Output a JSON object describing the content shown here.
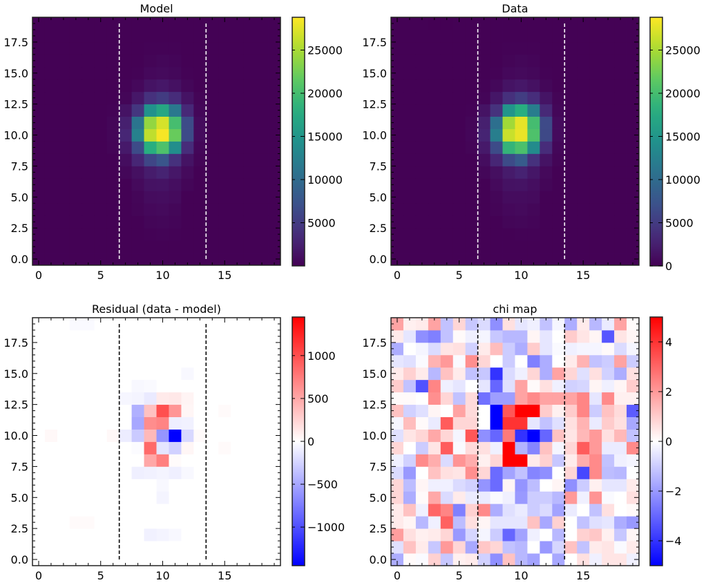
{
  "chart_data": [
    {
      "type": "heatmap",
      "title": "Model",
      "xlabel": "",
      "ylabel": "",
      "xlim": [
        -0.5,
        19.5
      ],
      "ylim": [
        -0.5,
        19.5
      ],
      "xticks": [
        "0",
        "5",
        "10",
        "15"
      ],
      "yticks": [
        "0.0",
        "2.5",
        "5.0",
        "7.5",
        "10.0",
        "12.5",
        "15.0",
        "17.5"
      ],
      "cmap": "viridis",
      "colorbar": {
        "range": [
          0,
          28800
        ],
        "ticks": [
          "5000",
          "10000",
          "15000",
          "20000",
          "25000"
        ]
      },
      "vlines": [
        6.5,
        13.5
      ],
      "vline_color": "#ffffff",
      "background_value": 50,
      "cells": [
        [
          9,
          17,
          150
        ],
        [
          10,
          17,
          200
        ],
        [
          11,
          17,
          150
        ],
        [
          9,
          16,
          300
        ],
        [
          10,
          16,
          450
        ],
        [
          11,
          16,
          350
        ],
        [
          8,
          15,
          200
        ],
        [
          9,
          15,
          600
        ],
        [
          10,
          15,
          700
        ],
        [
          11,
          15,
          550
        ],
        [
          12,
          15,
          200
        ],
        [
          7,
          14,
          150
        ],
        [
          8,
          14,
          600
        ],
        [
          9,
          14,
          1500
        ],
        [
          10,
          14,
          1800
        ],
        [
          11,
          14,
          1300
        ],
        [
          12,
          14,
          500
        ],
        [
          7,
          13,
          400
        ],
        [
          8,
          13,
          1800
        ],
        [
          9,
          13,
          4000
        ],
        [
          10,
          13,
          5000
        ],
        [
          11,
          13,
          3500
        ],
        [
          12,
          13,
          1500
        ],
        [
          13,
          13,
          300
        ],
        [
          6,
          12,
          200
        ],
        [
          7,
          12,
          1500
        ],
        [
          8,
          12,
          4500
        ],
        [
          9,
          12,
          14500
        ],
        [
          10,
          12,
          17000
        ],
        [
          11,
          12,
          11500
        ],
        [
          12,
          12,
          3200
        ],
        [
          13,
          12,
          500
        ],
        [
          6,
          11,
          400
        ],
        [
          7,
          11,
          2500
        ],
        [
          8,
          11,
          11000
        ],
        [
          9,
          11,
          24000
        ],
        [
          10,
          11,
          27000
        ],
        [
          11,
          11,
          20000
        ],
        [
          12,
          11,
          6500
        ],
        [
          13,
          11,
          800
        ],
        [
          6,
          10,
          400
        ],
        [
          7,
          10,
          3000
        ],
        [
          8,
          10,
          12500
        ],
        [
          9,
          10,
          26000
        ],
        [
          10,
          10,
          28500
        ],
        [
          11,
          10,
          22000
        ],
        [
          12,
          10,
          6500
        ],
        [
          13,
          10,
          800
        ],
        [
          6,
          9,
          300
        ],
        [
          7,
          9,
          2000
        ],
        [
          8,
          9,
          6500
        ],
        [
          9,
          9,
          18000
        ],
        [
          10,
          9,
          20500
        ],
        [
          11,
          9,
          14000
        ],
        [
          12,
          9,
          3500
        ],
        [
          13,
          9,
          500
        ],
        [
          7,
          8,
          1000
        ],
        [
          8,
          8,
          3000
        ],
        [
          9,
          8,
          6000
        ],
        [
          10,
          8,
          7500
        ],
        [
          11,
          8,
          4000
        ],
        [
          12,
          8,
          1500
        ],
        [
          13,
          8,
          300
        ],
        [
          7,
          7,
          500
        ],
        [
          8,
          7,
          1200
        ],
        [
          9,
          7,
          2200
        ],
        [
          10,
          7,
          2800
        ],
        [
          11,
          7,
          1800
        ],
        [
          12,
          7,
          700
        ],
        [
          8,
          6,
          700
        ],
        [
          9,
          6,
          1400
        ],
        [
          10,
          6,
          1500
        ],
        [
          11,
          6,
          1100
        ],
        [
          12,
          6,
          400
        ],
        [
          8,
          5,
          400
        ],
        [
          9,
          5,
          900
        ],
        [
          10,
          5,
          1000
        ],
        [
          11,
          5,
          800
        ],
        [
          8,
          4,
          300
        ],
        [
          9,
          4,
          600
        ],
        [
          10,
          4,
          700
        ],
        [
          11,
          4,
          500
        ],
        [
          9,
          3,
          400
        ],
        [
          10,
          3,
          450
        ],
        [
          11,
          3,
          350
        ],
        [
          9,
          2,
          200
        ],
        [
          10,
          2,
          250
        ],
        [
          11,
          2,
          200
        ]
      ]
    },
    {
      "type": "heatmap",
      "title": "Data",
      "xlabel": "",
      "ylabel": "",
      "xlim": [
        -0.5,
        19.5
      ],
      "ylim": [
        -0.5,
        19.5
      ],
      "xticks": [
        "0",
        "5",
        "10",
        "15"
      ],
      "yticks": [
        "0.0",
        "2.5",
        "5.0",
        "7.5",
        "10.0",
        "12.5",
        "15.0",
        "17.5"
      ],
      "cmap": "viridis",
      "colorbar": {
        "range": [
          0,
          28800
        ],
        "ticks": [
          "0",
          "5000",
          "10000",
          "15000",
          "20000",
          "25000"
        ]
      },
      "vlines": [
        6.5,
        13.5
      ],
      "vline_color": "#ffffff",
      "derived_from": "model + residual"
    },
    {
      "type": "heatmap",
      "title": "Residual (data - model)",
      "xlabel": "",
      "ylabel": "",
      "xlim": [
        -0.5,
        19.5
      ],
      "ylim": [
        -0.5,
        19.5
      ],
      "xticks": [
        "0",
        "5",
        "10",
        "15"
      ],
      "yticks": [
        "0.0",
        "2.5",
        "5.0",
        "7.5",
        "10.0",
        "12.5",
        "15.0",
        "17.5"
      ],
      "cmap": "bwr",
      "colorbar": {
        "range": [
          -1450,
          1450
        ],
        "ticks": [
          "−1000",
          "−500",
          "0",
          "500",
          "1000"
        ]
      },
      "vlines": [
        6.5,
        13.5
      ],
      "vline_color": "#000000",
      "background_value": 0,
      "cells": [
        [
          7,
          13,
          -50
        ],
        [
          8,
          13,
          -60
        ],
        [
          9,
          13,
          -120
        ],
        [
          10,
          13,
          120
        ],
        [
          11,
          13,
          130
        ],
        [
          12,
          13,
          60
        ],
        [
          8,
          12,
          -450
        ],
        [
          9,
          12,
          350
        ],
        [
          10,
          12,
          1000
        ],
        [
          11,
          12,
          600
        ],
        [
          12,
          12,
          50
        ],
        [
          8,
          11,
          -500
        ],
        [
          9,
          11,
          650
        ],
        [
          10,
          11,
          700
        ],
        [
          11,
          11,
          -90
        ],
        [
          12,
          11,
          -80
        ],
        [
          7,
          10,
          -110
        ],
        [
          8,
          10,
          -300
        ],
        [
          9,
          10,
          400
        ],
        [
          10,
          10,
          -600
        ],
        [
          11,
          10,
          -1450
        ],
        [
          12,
          10,
          -220
        ],
        [
          13,
          10,
          30
        ],
        [
          1,
          10,
          40
        ],
        [
          6,
          10,
          40
        ],
        [
          8,
          9,
          -20
        ],
        [
          9,
          9,
          850
        ],
        [
          10,
          9,
          -150
        ],
        [
          11,
          9,
          -260
        ],
        [
          12,
          9,
          50
        ],
        [
          9,
          8,
          500
        ],
        [
          10,
          8,
          730
        ],
        [
          11,
          8,
          20
        ],
        [
          8,
          7,
          -90
        ],
        [
          9,
          7,
          -80
        ],
        [
          10,
          7,
          -60
        ],
        [
          11,
          7,
          -90
        ],
        [
          12,
          7,
          -40
        ],
        [
          10,
          6,
          -40
        ],
        [
          10,
          5,
          -60
        ],
        [
          9,
          2,
          -80
        ],
        [
          10,
          2,
          -60
        ],
        [
          11,
          2,
          -40
        ],
        [
          8,
          14,
          -40
        ],
        [
          9,
          14,
          -30
        ],
        [
          12,
          15,
          -40
        ],
        [
          3,
          19,
          -30
        ],
        [
          4,
          19,
          -30
        ],
        [
          15,
          9,
          30
        ],
        [
          15,
          12,
          30
        ],
        [
          3,
          3,
          30
        ],
        [
          4,
          3,
          30
        ]
      ]
    },
    {
      "type": "heatmap",
      "title": "chi map",
      "xlabel": "",
      "ylabel": "",
      "xlim": [
        -0.5,
        19.5
      ],
      "ylim": [
        -0.5,
        19.5
      ],
      "xticks": [
        "0",
        "5",
        "10",
        "15"
      ],
      "yticks": [
        "0.0",
        "2.5",
        "5.0",
        "7.5",
        "10.0",
        "12.5",
        "15.0",
        "17.5"
      ],
      "cmap": "bwr",
      "colorbar": {
        "range": [
          -5,
          5
        ],
        "ticks": [
          "−4",
          "−2",
          "0",
          "2",
          "4"
        ]
      },
      "vlines": [
        6.5,
        13.5
      ],
      "vline_color": "#000000",
      "rows_top_to_bottom": [
        [
          1.8,
          0.3,
          0.4,
          1.8,
          -1.2,
          0.8,
          -1.1,
          -0.7,
          -2.2,
          0.6,
          -0.5,
          -0.3,
          -1.2,
          -0.2,
          -1.6,
          0.4,
          -1.4,
          -0.4,
          1.8,
          0.1
        ],
        [
          0.4,
          -0.5,
          -2.2,
          -2.5,
          -1.2,
          0.1,
          -0.3,
          -0.2,
          -1.1,
          -1.4,
          -1.4,
          0.2,
          -0.5,
          0,
          1.0,
          0.5,
          0.2,
          -3.3,
          0.5,
          0.2
        ],
        [
          -1.6,
          0,
          -0.2,
          -0.7,
          0.5,
          0.6,
          -0.9,
          0.4,
          1.3,
          -1.0,
          -1.6,
          1.0,
          -0.5,
          -0.1,
          -0.3,
          -0.2,
          -0.2,
          0.1,
          -0.7,
          -0.2
        ],
        [
          -0.5,
          -0.6,
          -0.1,
          1.5,
          2.0,
          -0.1,
          2.2,
          0.8,
          0,
          -1.0,
          0,
          -2.5,
          -1.6,
          0,
          0.4,
          1.5,
          -1.2,
          -1.0,
          1.8,
          -1.0
        ],
        [
          0.4,
          0.9,
          0.4,
          -1.4,
          1.2,
          0.4,
          -1.2,
          -1.1,
          -4.0,
          -0.7,
          -0.3,
          0.8,
          -1.6,
          1.8,
          0.8,
          -0.6,
          0.6,
          -0.9,
          -1.6,
          0.6
        ],
        [
          1.0,
          -1.2,
          -3.4,
          2.4,
          -0.3,
          -0.5,
          0,
          -0.5,
          -3.0,
          -0.6,
          1.8,
          0.1,
          0.6,
          -0.3,
          -0.9,
          -0.8,
          0.2,
          -0.3,
          0.2,
          1.0
        ],
        [
          0.1,
          0.1,
          0,
          2.2,
          0.8,
          -1.2,
          0.7,
          -2.8,
          -1.9,
          -1.9,
          1.8,
          2.3,
          1.8,
          1.8,
          1.8,
          2.4,
          -0.5,
          2.3,
          0.3,
          0.3
        ],
        [
          1.2,
          -0.9,
          -0.6,
          0.2,
          0,
          1.8,
          0.7,
          0,
          -5,
          3.3,
          5,
          5,
          1.0,
          0.3,
          1.0,
          2.4,
          -1.0,
          1.2,
          0.7,
          -3.2
        ],
        [
          -0.2,
          1.3,
          0.1,
          -0.4,
          3.2,
          0.8,
          0.8,
          0,
          -5,
          4,
          4,
          -0.5,
          -1.2,
          -0.6,
          0.6,
          1.5,
          -0.4,
          1.0,
          0.6,
          -1.7
        ],
        [
          -0.6,
          0.5,
          0.8,
          1.7,
          0.8,
          -0.2,
          3.3,
          -2.2,
          -3.0,
          2.6,
          -4.0,
          -5,
          -3.0,
          1.2,
          0.5,
          1.4,
          2.0,
          0.6,
          1.4,
          -1.2
        ],
        [
          0.8,
          0,
          -1.0,
          0.5,
          3.2,
          -0.1,
          0.7,
          0.6,
          -0.3,
          5,
          -1.5,
          -2.4,
          1.2,
          -0.2,
          0.8,
          3.2,
          2.0,
          -0.4,
          -0.4,
          2.3
        ],
        [
          -0.3,
          -0.9,
          2.3,
          1.6,
          -0.7,
          2.1,
          1.6,
          0.3,
          0.8,
          5,
          5,
          0.4,
          0.9,
          -1.1,
          0.4,
          1.6,
          2.3,
          -1.2,
          -0.3,
          -0.2
        ],
        [
          -0.7,
          -2.0,
          0,
          1.2,
          0.6,
          0.5,
          2.2,
          0.8,
          -2.9,
          -1.8,
          -1.2,
          -2.4,
          -2.2,
          0,
          0.8,
          -3.6,
          2.3,
          -1.3,
          -1.4,
          0
        ],
        [
          0.8,
          -1.3,
          0.2,
          -0.3,
          -0.3,
          -0.7,
          -0.9,
          -2.1,
          -2.9,
          0.2,
          -2.1,
          -1.3,
          0,
          0.2,
          -2.2,
          -1.0,
          0.3,
          -0.5,
          -0.5,
          0.4
        ],
        [
          0.8,
          -1.6,
          0.1,
          1.7,
          -0.7,
          0.4,
          -0.4,
          -0.4,
          -0.1,
          -0.3,
          -2.0,
          -1.0,
          -1.0,
          -1.4,
          2.0,
          -0.3,
          2.1,
          -0.1,
          0,
          0.6
        ],
        [
          0.4,
          1.2,
          -0.3,
          3.0,
          2.4,
          -2.5,
          0.9,
          2.3,
          -1.6,
          -0.6,
          -0.4,
          -1.0,
          -0.7,
          -1.8,
          -0.4,
          0,
          -1.2,
          0.6,
          0,
          0.1
        ],
        [
          0.4,
          0.2,
          -1.4,
          -0.3,
          3.1,
          -1.3,
          0.6,
          0.2,
          -0.5,
          -0.5,
          -0.5,
          1.2,
          -1.7,
          0.9,
          0,
          -1.2,
          -0.6,
          -0.5,
          -1.6,
          -2.0
        ],
        [
          1.9,
          0.6,
          0.3,
          0.4,
          0.8,
          -2.0,
          -0.8,
          -0.2,
          -1.0,
          -3.0,
          -1.8,
          -0.3,
          0,
          -1.4,
          0,
          0.9,
          1.1,
          0.3,
          -1.1,
          0.2
        ],
        [
          -0.6,
          1.2,
          0.4,
          -1.1,
          2.0,
          0.8,
          -1.7,
          1.1,
          0.8,
          -1.2,
          -1.4,
          0,
          -2.0,
          -0.8,
          1.2,
          -1.2,
          0.4,
          0.5,
          -0.1,
          0.4
        ],
        [
          -1.6,
          0.1,
          -0.1,
          0.9,
          -1.1,
          0.3,
          0.4,
          -0.9,
          -2.2,
          1.2,
          -1.4,
          -1.8,
          0,
          -1.7,
          0,
          0.6,
          -0.3,
          0.5,
          0.5,
          -0.3
        ]
      ]
    }
  ]
}
